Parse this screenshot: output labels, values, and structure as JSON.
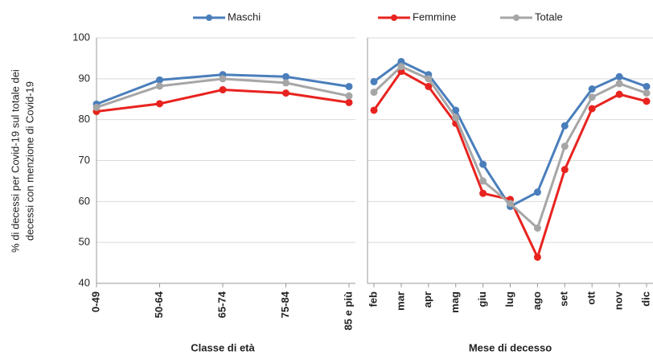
{
  "chart_data": [
    {
      "type": "line",
      "y_label": [
        "% di decessi per Covid-19 sul totale dei",
        "decessi con menzione di Covid-19"
      ],
      "x_label": "Classe di età",
      "categories": [
        "0-49",
        "50-64",
        "65-74",
        "75-84",
        "85 e più"
      ],
      "series": [
        {
          "name": "Maschi",
          "color": "#4a7ebb",
          "values": [
            83.8,
            89.7,
            91.0,
            90.5,
            88.1
          ]
        },
        {
          "name": "Femmine",
          "color": "#e8231f",
          "values": [
            82.0,
            83.9,
            87.3,
            86.5,
            84.2
          ]
        },
        {
          "name": "Totale",
          "color": "#a6a6a6",
          "values": [
            83.0,
            88.2,
            90.0,
            89.0,
            85.8
          ]
        }
      ],
      "ylim": [
        40,
        100
      ],
      "yticks": [
        40,
        50,
        60,
        70,
        80,
        90,
        100
      ],
      "grid": true
    },
    {
      "type": "line",
      "x_label": "Mese di decesso",
      "categories": [
        "feb",
        "mar",
        "apr",
        "mag",
        "giu",
        "lug",
        "ago",
        "set",
        "ott",
        "nov",
        "dic"
      ],
      "series": [
        {
          "values": [
            89.3,
            94.2,
            91.0,
            82.3,
            69.1,
            58.8,
            62.3,
            78.5,
            87.5,
            90.5,
            88.1
          ]
        },
        {
          "values": [
            82.3,
            91.8,
            88.1,
            79.1,
            62.0,
            60.5,
            46.4,
            67.8,
            82.7,
            86.2,
            84.5
          ]
        },
        {
          "values": [
            86.7,
            93.0,
            90.0,
            80.5,
            65.0,
            59.5,
            53.5,
            73.5,
            85.5,
            88.8,
            86.5
          ]
        }
      ],
      "ylim": [
        40,
        100
      ],
      "grid": true
    }
  ]
}
